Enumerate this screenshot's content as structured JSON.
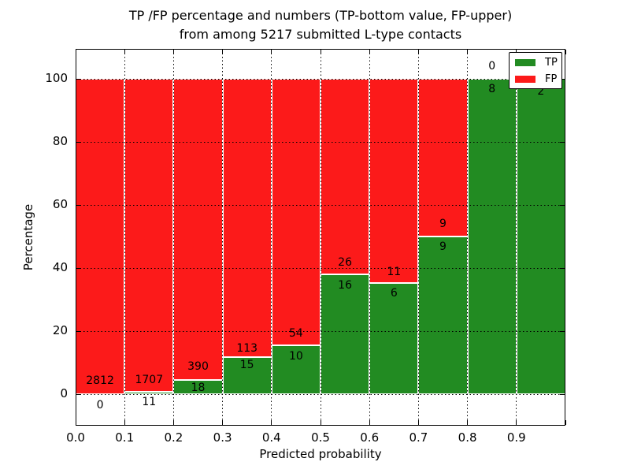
{
  "title": {
    "line1": "TP /FP percentage and numbers (TP-bottom value, FP-upper)",
    "line2": "from among 5217 submitted L-type contacts"
  },
  "axes": {
    "xlabel": "Predicted probability",
    "ylabel": "Percentage",
    "x_tick_labels": [
      "0.0",
      "0.1",
      "0.2",
      "0.3",
      "0.4",
      "0.5",
      "0.6",
      "0.7",
      "0.8",
      "0.9"
    ],
    "y_tick_labels": [
      "0",
      "20",
      "40",
      "60",
      "80",
      "100"
    ],
    "y_tick_values": [
      0,
      20,
      40,
      60,
      80,
      100
    ]
  },
  "legend": {
    "items": [
      {
        "label": "TP",
        "color": "#228b22"
      },
      {
        "label": "FP",
        "color": "#fc1a1a"
      }
    ]
  },
  "colors": {
    "tp": "#228b22",
    "fp": "#fc1a1a",
    "grid": "#000000",
    "background": "#ffffff"
  },
  "chart_data": {
    "type": "bar",
    "stacked": true,
    "unit": "percent",
    "title": "TP /FP percentage and numbers (TP-bottom value, FP-upper) from among 5217 submitted L-type contacts",
    "xlabel": "Predicted probability",
    "ylabel": "Percentage",
    "xlim": [
      0.0,
      1.0
    ],
    "ylim": [
      -10,
      110
    ],
    "grid": true,
    "legend_position": "upper right",
    "bin_edges": [
      0.0,
      0.1,
      0.2,
      0.3,
      0.4,
      0.5,
      0.6,
      0.7,
      0.8,
      0.9,
      1.0
    ],
    "categories": [
      "0.0-0.1",
      "0.1-0.2",
      "0.2-0.3",
      "0.3-0.4",
      "0.4-0.5",
      "0.5-0.6",
      "0.6-0.7",
      "0.7-0.8",
      "0.8-0.9",
      "0.9-1.0"
    ],
    "series": [
      {
        "name": "TP",
        "color": "#228b22",
        "counts": [
          0,
          11,
          18,
          15,
          10,
          16,
          6,
          9,
          8,
          2
        ],
        "pct": [
          0,
          0.6403,
          4.4118,
          11.7188,
          15.625,
          38.0952,
          35.2941,
          50,
          100,
          100
        ]
      },
      {
        "name": "FP",
        "color": "#fc1a1a",
        "counts": [
          2812,
          1707,
          390,
          113,
          54,
          26,
          11,
          9,
          0,
          0
        ],
        "pct": [
          100,
          99.3597,
          95.5882,
          88.2812,
          84.375,
          61.9048,
          64.7059,
          50,
          0,
          0
        ]
      }
    ],
    "bar_labels": {
      "fp": [
        "2812",
        "1707",
        "390",
        "113",
        "54",
        "26",
        "11",
        "9",
        "0",
        null
      ],
      "fp_y": [
        4.3,
        4.6,
        8.8,
        14.5,
        19.3,
        41.8,
        38.8,
        54,
        104,
        null
      ],
      "tp": [
        "0",
        "11",
        "18",
        "15",
        "10",
        "16",
        "6",
        "9",
        "8",
        "2"
      ],
      "tp_y": [
        -3.6,
        -2.6,
        1.9,
        9.2,
        12.0,
        34.5,
        32.0,
        46.8,
        96.8,
        96.0
      ]
    }
  }
}
